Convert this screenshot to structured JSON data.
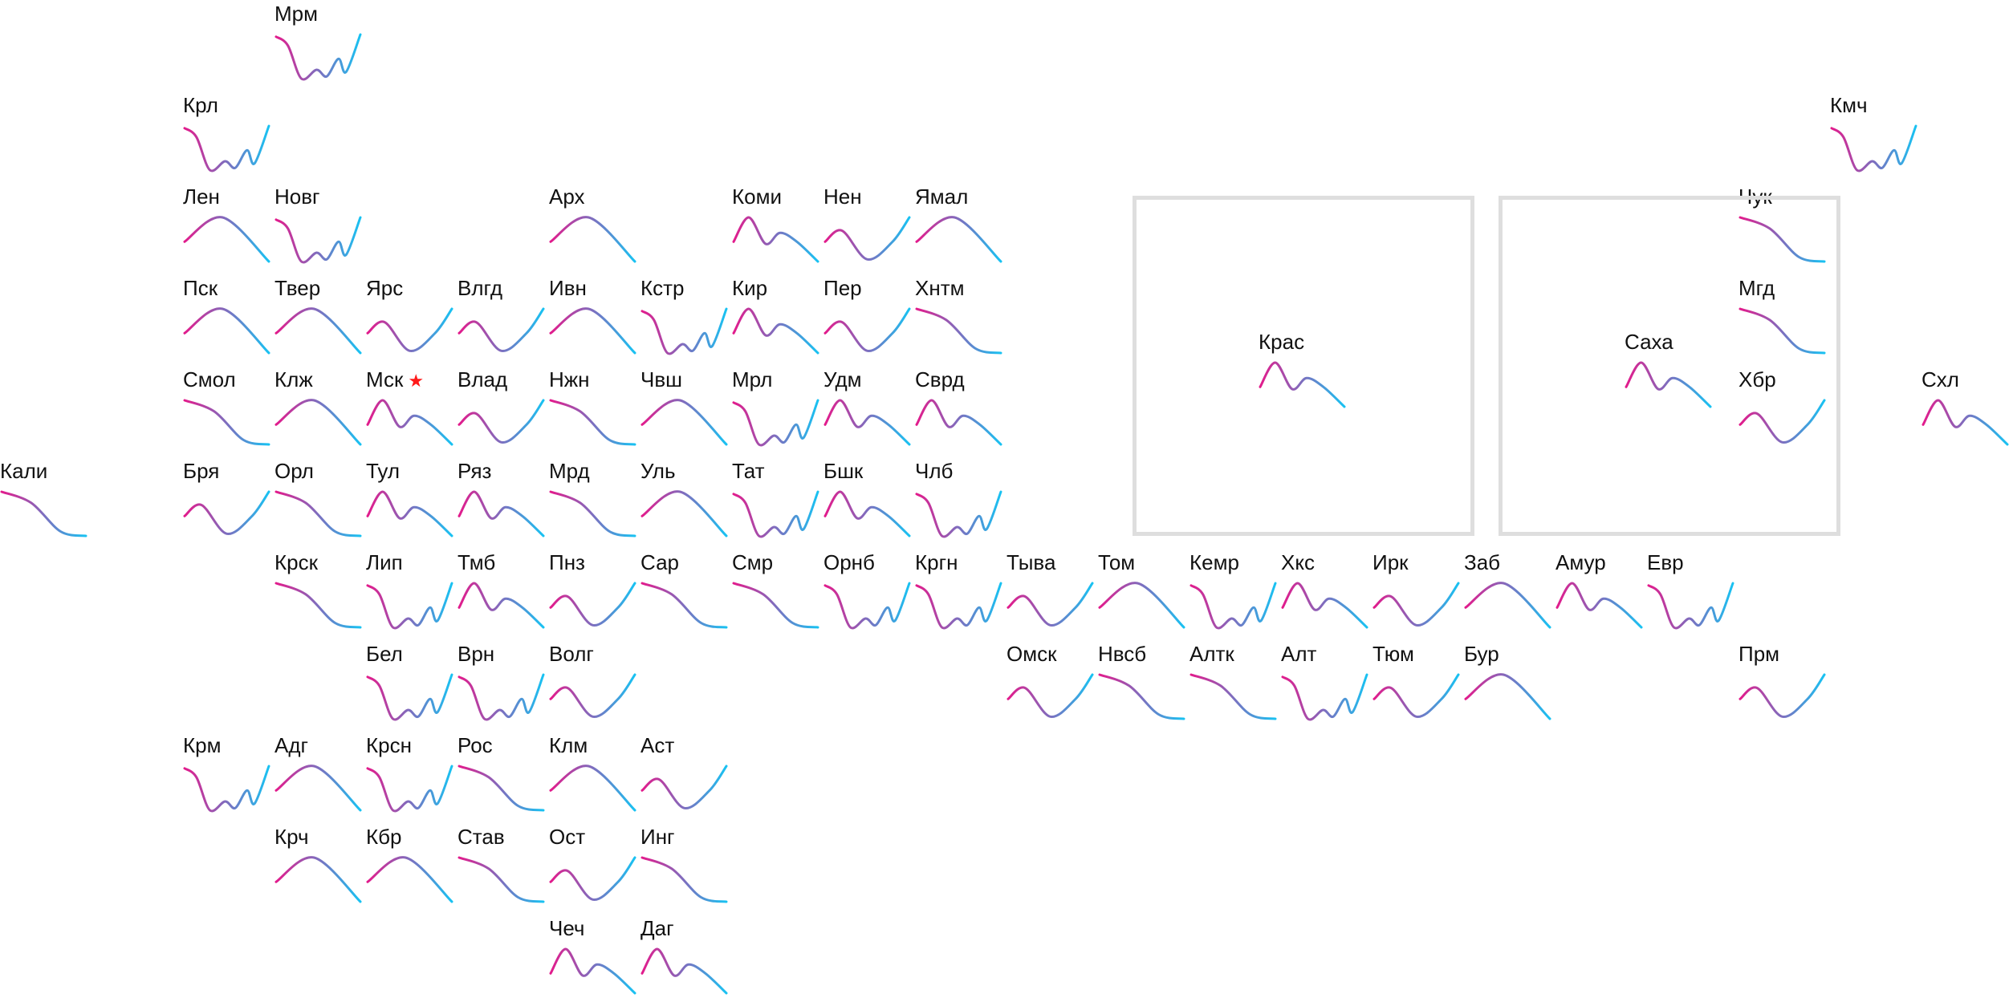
{
  "colors": {
    "start": "#e21b8c",
    "end": "#18c2f2",
    "frame": "#dedede",
    "capital_star": "#ff1a1a"
  },
  "capital_marker": "star-icon",
  "regions": [
    {
      "id": "mrm",
      "label": "Мрм",
      "col": 3,
      "row": 0,
      "shape": "w"
    },
    {
      "id": "krl",
      "label": "Крл",
      "col": 2,
      "row": 1,
      "shape": "w"
    },
    {
      "id": "kmch",
      "label": "Кмч",
      "col": 20,
      "row": 1,
      "shape": "w"
    },
    {
      "id": "len",
      "label": "Лен",
      "col": 2,
      "row": 2,
      "shape": "hump"
    },
    {
      "id": "novg",
      "label": "Новг",
      "col": 3,
      "row": 2,
      "shape": "w"
    },
    {
      "id": "arh",
      "label": "Арх",
      "col": 6,
      "row": 2,
      "shape": "hump"
    },
    {
      "id": "komi",
      "label": "Коми",
      "col": 8,
      "row": 2,
      "shape": "twohump"
    },
    {
      "id": "nen",
      "label": "Нен",
      "col": 9,
      "row": 2,
      "shape": "valley"
    },
    {
      "id": "yamal",
      "label": "Ямал",
      "col": 10,
      "row": 2,
      "shape": "hump"
    },
    {
      "id": "chuk",
      "label": "Чук",
      "col": 19,
      "row": 2,
      "shape": "down"
    },
    {
      "id": "psk",
      "label": "Пск",
      "col": 2,
      "row": 3,
      "shape": "hump"
    },
    {
      "id": "tver",
      "label": "Твер",
      "col": 3,
      "row": 3,
      "shape": "hump"
    },
    {
      "id": "yars",
      "label": "Ярс",
      "col": 4,
      "row": 3,
      "shape": "valley"
    },
    {
      "id": "vlgd",
      "label": "Влгд",
      "col": 5,
      "row": 3,
      "shape": "valley"
    },
    {
      "id": "ivn",
      "label": "Ивн",
      "col": 6,
      "row": 3,
      "shape": "hump"
    },
    {
      "id": "kstr",
      "label": "Кстр",
      "col": 7,
      "row": 3,
      "shape": "w"
    },
    {
      "id": "kir",
      "label": "Кир",
      "col": 8,
      "row": 3,
      "shape": "twohump"
    },
    {
      "id": "per",
      "label": "Пер",
      "col": 9,
      "row": 3,
      "shape": "valley"
    },
    {
      "id": "hntm",
      "label": "Хнтм",
      "col": 10,
      "row": 3,
      "shape": "down"
    },
    {
      "id": "mgd",
      "label": "Мгд",
      "col": 19,
      "row": 3,
      "shape": "down"
    },
    {
      "id": "smol",
      "label": "Смол",
      "col": 2,
      "row": 4,
      "shape": "down"
    },
    {
      "id": "klzh",
      "label": "Клж",
      "col": 3,
      "row": 4,
      "shape": "hump"
    },
    {
      "id": "msk",
      "label": "Мск",
      "col": 4,
      "row": 4,
      "shape": "twohump",
      "capital": true
    },
    {
      "id": "vlad",
      "label": "Влад",
      "col": 5,
      "row": 4,
      "shape": "valley"
    },
    {
      "id": "nzhn",
      "label": "Нжн",
      "col": 6,
      "row": 4,
      "shape": "down"
    },
    {
      "id": "chvsh",
      "label": "Чвш",
      "col": 7,
      "row": 4,
      "shape": "hump"
    },
    {
      "id": "mrl",
      "label": "Мрл",
      "col": 8,
      "row": 4,
      "shape": "w"
    },
    {
      "id": "udm",
      "label": "Удм",
      "col": 9,
      "row": 4,
      "shape": "twohump"
    },
    {
      "id": "svrd",
      "label": "Сврд",
      "col": 10,
      "row": 4,
      "shape": "twohump"
    },
    {
      "id": "hbr",
      "label": "Хбр",
      "col": 19,
      "row": 4,
      "shape": "valley"
    },
    {
      "id": "shl",
      "label": "Схл",
      "col": 21,
      "row": 4,
      "shape": "twohump"
    },
    {
      "id": "kali",
      "label": "Кали",
      "col": 0,
      "row": 5,
      "shape": "down"
    },
    {
      "id": "brya",
      "label": "Бря",
      "col": 2,
      "row": 5,
      "shape": "valley"
    },
    {
      "id": "orl",
      "label": "Орл",
      "col": 3,
      "row": 5,
      "shape": "down"
    },
    {
      "id": "tul",
      "label": "Тул",
      "col": 4,
      "row": 5,
      "shape": "twohump"
    },
    {
      "id": "ryaz",
      "label": "Ряз",
      "col": 5,
      "row": 5,
      "shape": "twohump"
    },
    {
      "id": "mrd",
      "label": "Мрд",
      "col": 6,
      "row": 5,
      "shape": "down"
    },
    {
      "id": "ul",
      "label": "Уль",
      "col": 7,
      "row": 5,
      "shape": "hump"
    },
    {
      "id": "tat",
      "label": "Тат",
      "col": 8,
      "row": 5,
      "shape": "w"
    },
    {
      "id": "bshk",
      "label": "Бшк",
      "col": 9,
      "row": 5,
      "shape": "twohump"
    },
    {
      "id": "chlb",
      "label": "Члб",
      "col": 10,
      "row": 5,
      "shape": "w"
    },
    {
      "id": "krsk",
      "label": "Крск",
      "col": 3,
      "row": 6,
      "shape": "down"
    },
    {
      "id": "lip",
      "label": "Лип",
      "col": 4,
      "row": 6,
      "shape": "w"
    },
    {
      "id": "tmb",
      "label": "Тмб",
      "col": 5,
      "row": 6,
      "shape": "twohump"
    },
    {
      "id": "pnz",
      "label": "Пнз",
      "col": 6,
      "row": 6,
      "shape": "valley"
    },
    {
      "id": "sar",
      "label": "Сар",
      "col": 7,
      "row": 6,
      "shape": "down"
    },
    {
      "id": "smr",
      "label": "Смр",
      "col": 8,
      "row": 6,
      "shape": "down"
    },
    {
      "id": "ornb",
      "label": "Орнб",
      "col": 9,
      "row": 6,
      "shape": "w"
    },
    {
      "id": "krgn",
      "label": "Кргн",
      "col": 10,
      "row": 6,
      "shape": "w"
    },
    {
      "id": "tyva",
      "label": "Тыва",
      "col": 11,
      "row": 6,
      "shape": "valley"
    },
    {
      "id": "tom",
      "label": "Том",
      "col": 12,
      "row": 6,
      "shape": "hump"
    },
    {
      "id": "kemr",
      "label": "Кемр",
      "col": 13,
      "row": 6,
      "shape": "w"
    },
    {
      "id": "hks",
      "label": "Хкс",
      "col": 14,
      "row": 6,
      "shape": "twohump"
    },
    {
      "id": "irk",
      "label": "Ирк",
      "col": 15,
      "row": 6,
      "shape": "valley"
    },
    {
      "id": "zab",
      "label": "Заб",
      "col": 16,
      "row": 6,
      "shape": "hump"
    },
    {
      "id": "amur",
      "label": "Амур",
      "col": 17,
      "row": 6,
      "shape": "twohump"
    },
    {
      "id": "evr",
      "label": "Евр",
      "col": 18,
      "row": 6,
      "shape": "w"
    },
    {
      "id": "bel",
      "label": "Бел",
      "col": 4,
      "row": 7,
      "shape": "w"
    },
    {
      "id": "vrn",
      "label": "Врн",
      "col": 5,
      "row": 7,
      "shape": "w"
    },
    {
      "id": "volg",
      "label": "Волг",
      "col": 6,
      "row": 7,
      "shape": "valley"
    },
    {
      "id": "omsk",
      "label": "Омск",
      "col": 11,
      "row": 7,
      "shape": "valley"
    },
    {
      "id": "nvsb",
      "label": "Нвсб",
      "col": 12,
      "row": 7,
      "shape": "down"
    },
    {
      "id": "altk",
      "label": "Алтк",
      "col": 13,
      "row": 7,
      "shape": "down"
    },
    {
      "id": "alt",
      "label": "Алт",
      "col": 14,
      "row": 7,
      "shape": "w"
    },
    {
      "id": "tyum",
      "label": "Тюм",
      "col": 15,
      "row": 7,
      "shape": "valley"
    },
    {
      "id": "bur",
      "label": "Бур",
      "col": 16,
      "row": 7,
      "shape": "hump"
    },
    {
      "id": "prm",
      "label": "Прм",
      "col": 19,
      "row": 7,
      "shape": "valley"
    },
    {
      "id": "krm",
      "label": "Крм",
      "col": 2,
      "row": 8,
      "shape": "w"
    },
    {
      "id": "adg",
      "label": "Адг",
      "col": 3,
      "row": 8,
      "shape": "hump"
    },
    {
      "id": "krsn",
      "label": "Крсн",
      "col": 4,
      "row": 8,
      "shape": "w"
    },
    {
      "id": "ros",
      "label": "Рос",
      "col": 5,
      "row": 8,
      "shape": "down"
    },
    {
      "id": "klm",
      "label": "Клм",
      "col": 6,
      "row": 8,
      "shape": "hump"
    },
    {
      "id": "ast",
      "label": "Аст",
      "col": 7,
      "row": 8,
      "shape": "valley"
    },
    {
      "id": "krch",
      "label": "Крч",
      "col": 3,
      "row": 9,
      "shape": "hump"
    },
    {
      "id": "kbr",
      "label": "Кбр",
      "col": 4,
      "row": 9,
      "shape": "hump"
    },
    {
      "id": "stav",
      "label": "Став",
      "col": 5,
      "row": 9,
      "shape": "down"
    },
    {
      "id": "ost",
      "label": "Ост",
      "col": 6,
      "row": 9,
      "shape": "valley"
    },
    {
      "id": "ing",
      "label": "Инг",
      "col": 7,
      "row": 9,
      "shape": "down"
    },
    {
      "id": "chech",
      "label": "Чеч",
      "col": 6,
      "row": 10,
      "shape": "twohump"
    },
    {
      "id": "dag",
      "label": "Даг",
      "col": 7,
      "row": 10,
      "shape": "twohump"
    }
  ],
  "big_regions": [
    {
      "id": "kras",
      "label": "Крас",
      "col": 11,
      "row": 2,
      "shape": "twohump"
    },
    {
      "id": "saha",
      "label": "Саха",
      "col": 15,
      "row": 2,
      "shape": "twohump"
    }
  ]
}
